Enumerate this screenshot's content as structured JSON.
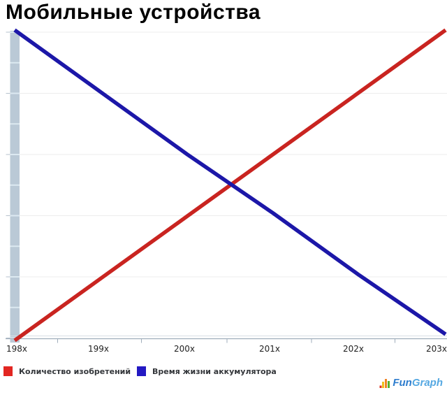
{
  "chart": {
    "title": "Мобильные устройства"
  },
  "chart_data": {
    "type": "line",
    "title": "Мобильные устройства",
    "categories": [
      "198x",
      "199x",
      "200x",
      "201x",
      "202x",
      "203x"
    ],
    "series": [
      {
        "name": "Количество изобретений",
        "color": "#c92420",
        "swatch_color": "#e22621",
        "values": [
          0,
          20,
          40,
          60,
          80,
          100
        ]
      },
      {
        "name": "Время жизни аккумулятора",
        "color": "#1c17a8",
        "swatch_color": "#2319c3",
        "values": [
          100,
          80,
          60,
          41,
          21,
          2
        ]
      }
    ],
    "xlabel": "",
    "ylabel": "",
    "ylim": [
      0,
      100
    ],
    "y_tick_labels_shown": false,
    "grid": "horizontal",
    "legend_position": "bottom-left",
    "note": "Joke trend chart: inventions rise linearly while battery life falls linearly across decades 198x-203x."
  },
  "logo": {
    "icon": "mini-bar-chart-icon",
    "text_fun": "Fun",
    "text_graph": "Graph"
  },
  "colors": {
    "background": "#ffffff",
    "gridline": "#ececec",
    "y_axis_bar": "#bac9d6",
    "y_axis_bar_notch": "#dcе9f1",
    "axis_line": "#9fadbb",
    "axis_line_light": "#d9dfe6",
    "tick": "#b6c2cc",
    "title_text": "#000000",
    "axis_label_text": "#1f1f1f",
    "legend_text": "#33363a"
  }
}
